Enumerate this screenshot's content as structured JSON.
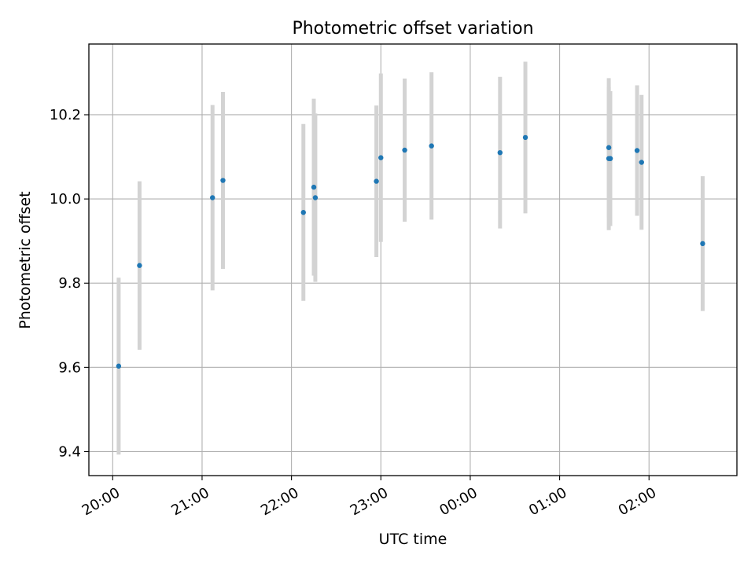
{
  "chart_data": {
    "type": "scatter",
    "title": "Photometric offset variation",
    "xlabel": "UTC time",
    "ylabel": "Photometric offset",
    "x_axis_kind": "datetime",
    "xlim": [
      "19:44",
      "26:59"
    ],
    "ylim": [
      9.343,
      10.368
    ],
    "xticks": [
      "20:00",
      "21:00",
      "22:00",
      "23:00",
      "00:00",
      "01:00",
      "02:00"
    ],
    "yticks": [
      "9.4",
      "9.6",
      "9.8",
      "10.0",
      "10.2"
    ],
    "grid": true,
    "point_color": "#1f77b4",
    "errorbar_color": "#d3d3d3",
    "series": [
      {
        "x": [
          "20:04",
          "20:18",
          "21:07",
          "21:14",
          "22:08",
          "22:15",
          "22:16",
          "22:57",
          "23:00",
          "23:16",
          "23:34",
          "00:20",
          "00:37",
          "01:33",
          "01:33",
          "01:34",
          "01:34",
          "01:52",
          "01:55",
          "02:36"
        ],
        "y": [
          9.603,
          9.842,
          10.003,
          10.044,
          9.968,
          10.028,
          10.003,
          10.042,
          10.098,
          10.116,
          10.126,
          10.11,
          10.146,
          10.096,
          10.122,
          10.096,
          10.096,
          10.115,
          10.087,
          9.894
        ],
        "yerr": [
          0.21,
          0.2,
          0.22,
          0.21,
          0.21,
          0.21,
          0.2,
          0.18,
          0.2,
          0.17,
          0.175,
          0.18,
          0.18,
          0.17,
          0.165,
          0.16,
          0.16,
          0.155,
          0.16,
          0.16
        ]
      }
    ]
  }
}
